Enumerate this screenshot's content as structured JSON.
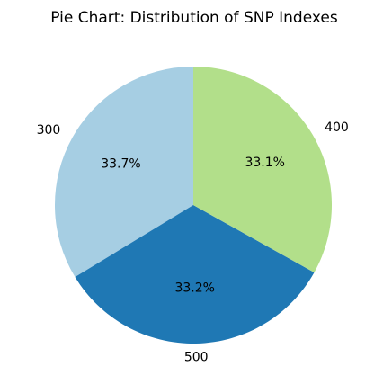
{
  "chart_data": {
    "type": "pie",
    "title": "Pie Chart: Distribution of SNP Indexes",
    "start_angle_deg": 90,
    "direction": "counterclockwise",
    "slices": [
      {
        "label": "300",
        "value": 33.7,
        "pct_label": "33.7%",
        "color": "#a6cee3"
      },
      {
        "label": "500",
        "value": 33.2,
        "pct_label": "33.2%",
        "color": "#1f78b4"
      },
      {
        "label": "400",
        "value": 33.1,
        "pct_label": "33.1%",
        "color": "#b2df8a"
      }
    ]
  }
}
